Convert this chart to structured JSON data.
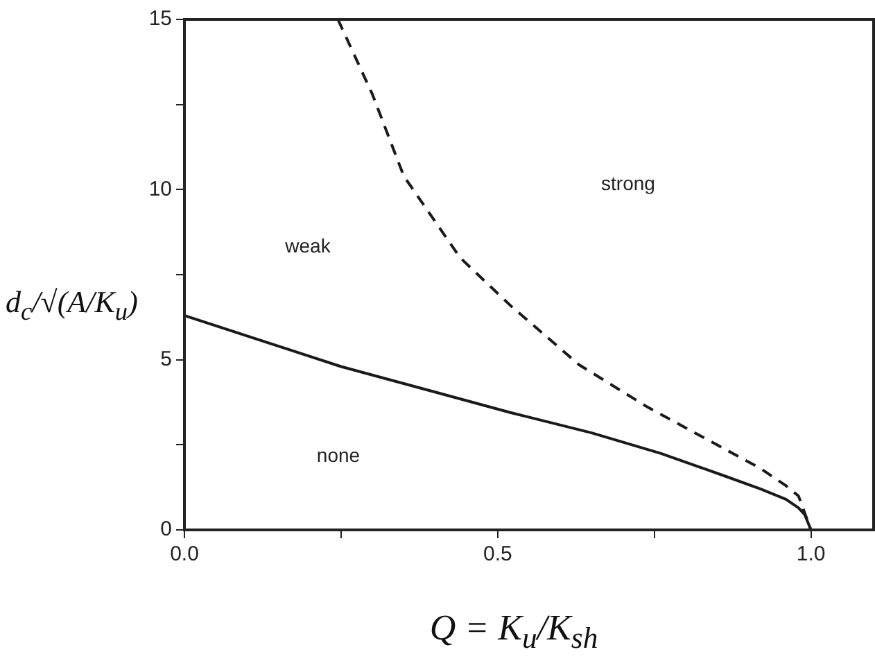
{
  "chart_data": {
    "type": "line",
    "xlabel": "Q = K$_{u}$/K$_{sh}$",
    "ylabel": "d$_{c}$/√(A/K$_{u}$)",
    "xlim": [
      0,
      1.1
    ],
    "ylim": [
      0,
      15
    ],
    "xticks": [
      {
        "value": 0,
        "label": "0.0"
      },
      {
        "value": 0.25,
        "label": null
      },
      {
        "value": 0.5,
        "label": "0.5"
      },
      {
        "value": 0.75,
        "label": null
      },
      {
        "value": 1,
        "label": "1.0"
      }
    ],
    "yticks": [
      0,
      {
        "value": 2.5,
        "label": null
      },
      5,
      {
        "value": 7.5,
        "label": null
      },
      10,
      {
        "value": 12.5,
        "label": null
      },
      15
    ],
    "grid": false,
    "legend": false,
    "series": [
      {
        "color": "#1a1a1a",
        "line_style": "solid",
        "x": [
          0,
          0.1,
          0.25,
          0.4,
          0.52,
          0.65,
          0.76,
          0.86,
          0.92,
          0.96,
          0.98,
          0.99,
          1.0
        ],
        "values": [
          6.3,
          5.7,
          4.8,
          4.05,
          3.45,
          2.85,
          2.25,
          1.6,
          1.2,
          0.9,
          0.65,
          0.45,
          0
        ]
      },
      {
        "color": "#1a1a1a",
        "line_style": "dashed",
        "x": [
          0.245,
          0.3,
          0.35,
          0.44,
          0.52,
          0.63,
          0.74,
          0.85,
          0.92,
          0.96,
          0.98,
          1.0
        ],
        "values": [
          15,
          12.8,
          10.4,
          8.0,
          6.6,
          4.85,
          3.6,
          2.5,
          1.8,
          1.3,
          1.0,
          0
        ]
      }
    ],
    "annotations": [
      "weak",
      "none",
      "strong"
    ]
  }
}
